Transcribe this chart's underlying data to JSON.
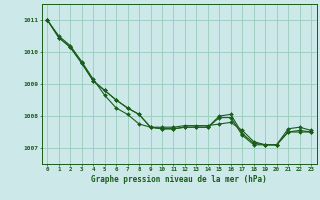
{
  "title": "Graphe pression niveau de la mer (hPa)",
  "bg_color": "#cce8e8",
  "grid_color": "#99ccbb",
  "line_color": "#1a5c1a",
  "xlim": [
    -0.5,
    23.5
  ],
  "ylim": [
    1006.5,
    1011.5
  ],
  "yticks": [
    1007,
    1008,
    1009,
    1010,
    1011
  ],
  "xticks": [
    0,
    1,
    2,
    3,
    4,
    5,
    6,
    7,
    8,
    9,
    10,
    11,
    12,
    13,
    14,
    15,
    16,
    17,
    18,
    19,
    20,
    21,
    22,
    23
  ],
  "series": [
    [
      1011.0,
      1010.5,
      1010.2,
      1009.7,
      1009.15,
      1008.65,
      1008.25,
      1008.05,
      1007.75,
      1007.65,
      1007.65,
      1007.65,
      1007.7,
      1007.7,
      1007.7,
      1007.75,
      1007.8,
      1007.55,
      1007.2,
      1007.1,
      1007.1,
      1007.6,
      1007.65,
      1007.55
    ],
    [
      1011.0,
      1010.45,
      1010.15,
      1009.65,
      1009.1,
      1008.8,
      1008.5,
      1008.25,
      1008.05,
      1007.65,
      1007.6,
      1007.6,
      1007.65,
      1007.65,
      1007.65,
      1008.0,
      1008.05,
      1007.45,
      1007.15,
      1007.1,
      1007.1,
      1007.5,
      1007.55,
      1007.5
    ],
    [
      1011.0,
      1010.45,
      1010.15,
      1009.65,
      1009.1,
      1008.8,
      1008.5,
      1008.25,
      1008.05,
      1007.65,
      1007.6,
      1007.6,
      1007.65,
      1007.65,
      1007.65,
      1007.95,
      1007.95,
      1007.4,
      1007.1,
      1007.1,
      1007.1,
      1007.5,
      1007.5,
      1007.5
    ]
  ]
}
